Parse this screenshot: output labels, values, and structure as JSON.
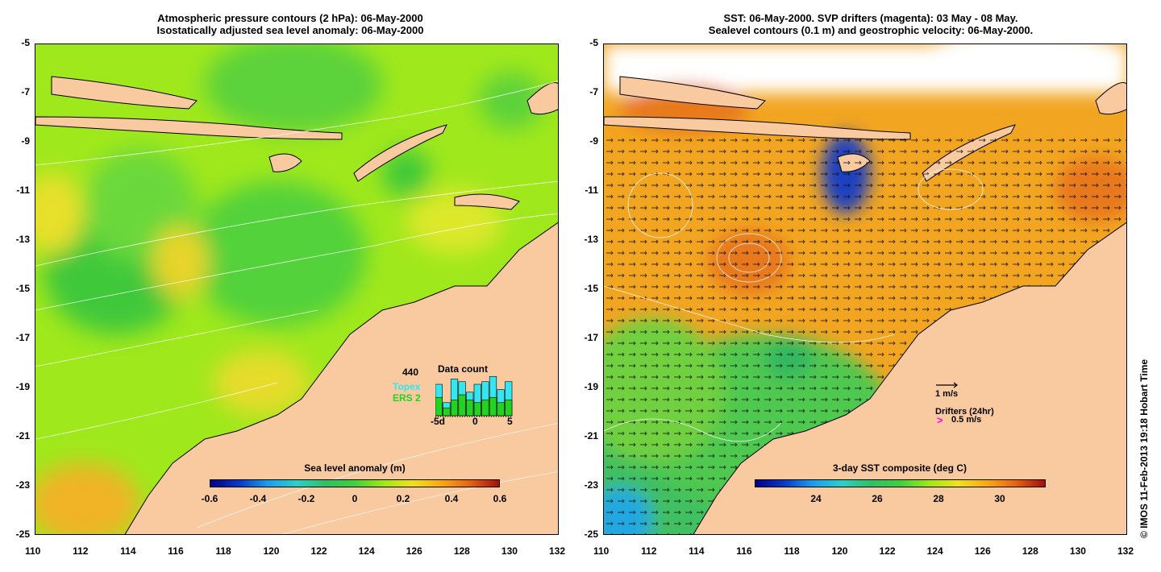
{
  "left_panel": {
    "title_line1": "Atmospheric pressure contours (2 hPa): 06-May-2000",
    "title_line2": "Isostatically adjusted sea level anomaly: 06-May-2000",
    "colorbar": {
      "label": "Sea level anomaly (m)",
      "ticks": [
        "-0.6",
        "-0.4",
        "-0.2",
        "0",
        "0.2",
        "0.4",
        "0.6"
      ]
    },
    "data_count": {
      "title": "Data count",
      "total": "440",
      "legend_topex": "Topex",
      "legend_ers": "ERS 2",
      "axis_ticks": [
        "-5d",
        "0",
        "5"
      ],
      "topex_color": "#33e6f2",
      "ers_color": "#22d422",
      "topex_counts": [
        12,
        5,
        14,
        13,
        9,
        12,
        13,
        15,
        10,
        13
      ],
      "ers_counts": [
        7,
        3,
        6,
        8,
        6,
        5,
        6,
        7,
        5,
        6
      ]
    }
  },
  "right_panel": {
    "title_line1": "SST: 06-May-2000. SVP drifters (magenta): 03 May - 08 May.",
    "title_line2": "Sealevel contours (0.1 m) and geostrophic velocity: 06-May-2000.",
    "colorbar": {
      "label": "3-day SST composite (deg C)",
      "ticks": [
        "24",
        "26",
        "28",
        "30"
      ]
    },
    "velocity_legend": "1 m/s",
    "drifters_label": "Drifters (24hr)",
    "drifters_speed": "0.5 m/s",
    "drifter_color": "#ff00ff"
  },
  "axes": {
    "x_ticks": [
      "110",
      "112",
      "114",
      "116",
      "118",
      "120",
      "122",
      "124",
      "126",
      "128",
      "130",
      "132"
    ],
    "y_ticks": [
      "-5",
      "-7",
      "-9",
      "-11",
      "-13",
      "-15",
      "-17",
      "-19",
      "-21",
      "-23",
      "-25"
    ]
  },
  "colors": {
    "land": "#f9c9a0",
    "sla_base": "#9fe81c",
    "sst_base": "#f2a521"
  },
  "credit": "© IMOS 11-Feb-2013 19:18 Hobart Time"
}
